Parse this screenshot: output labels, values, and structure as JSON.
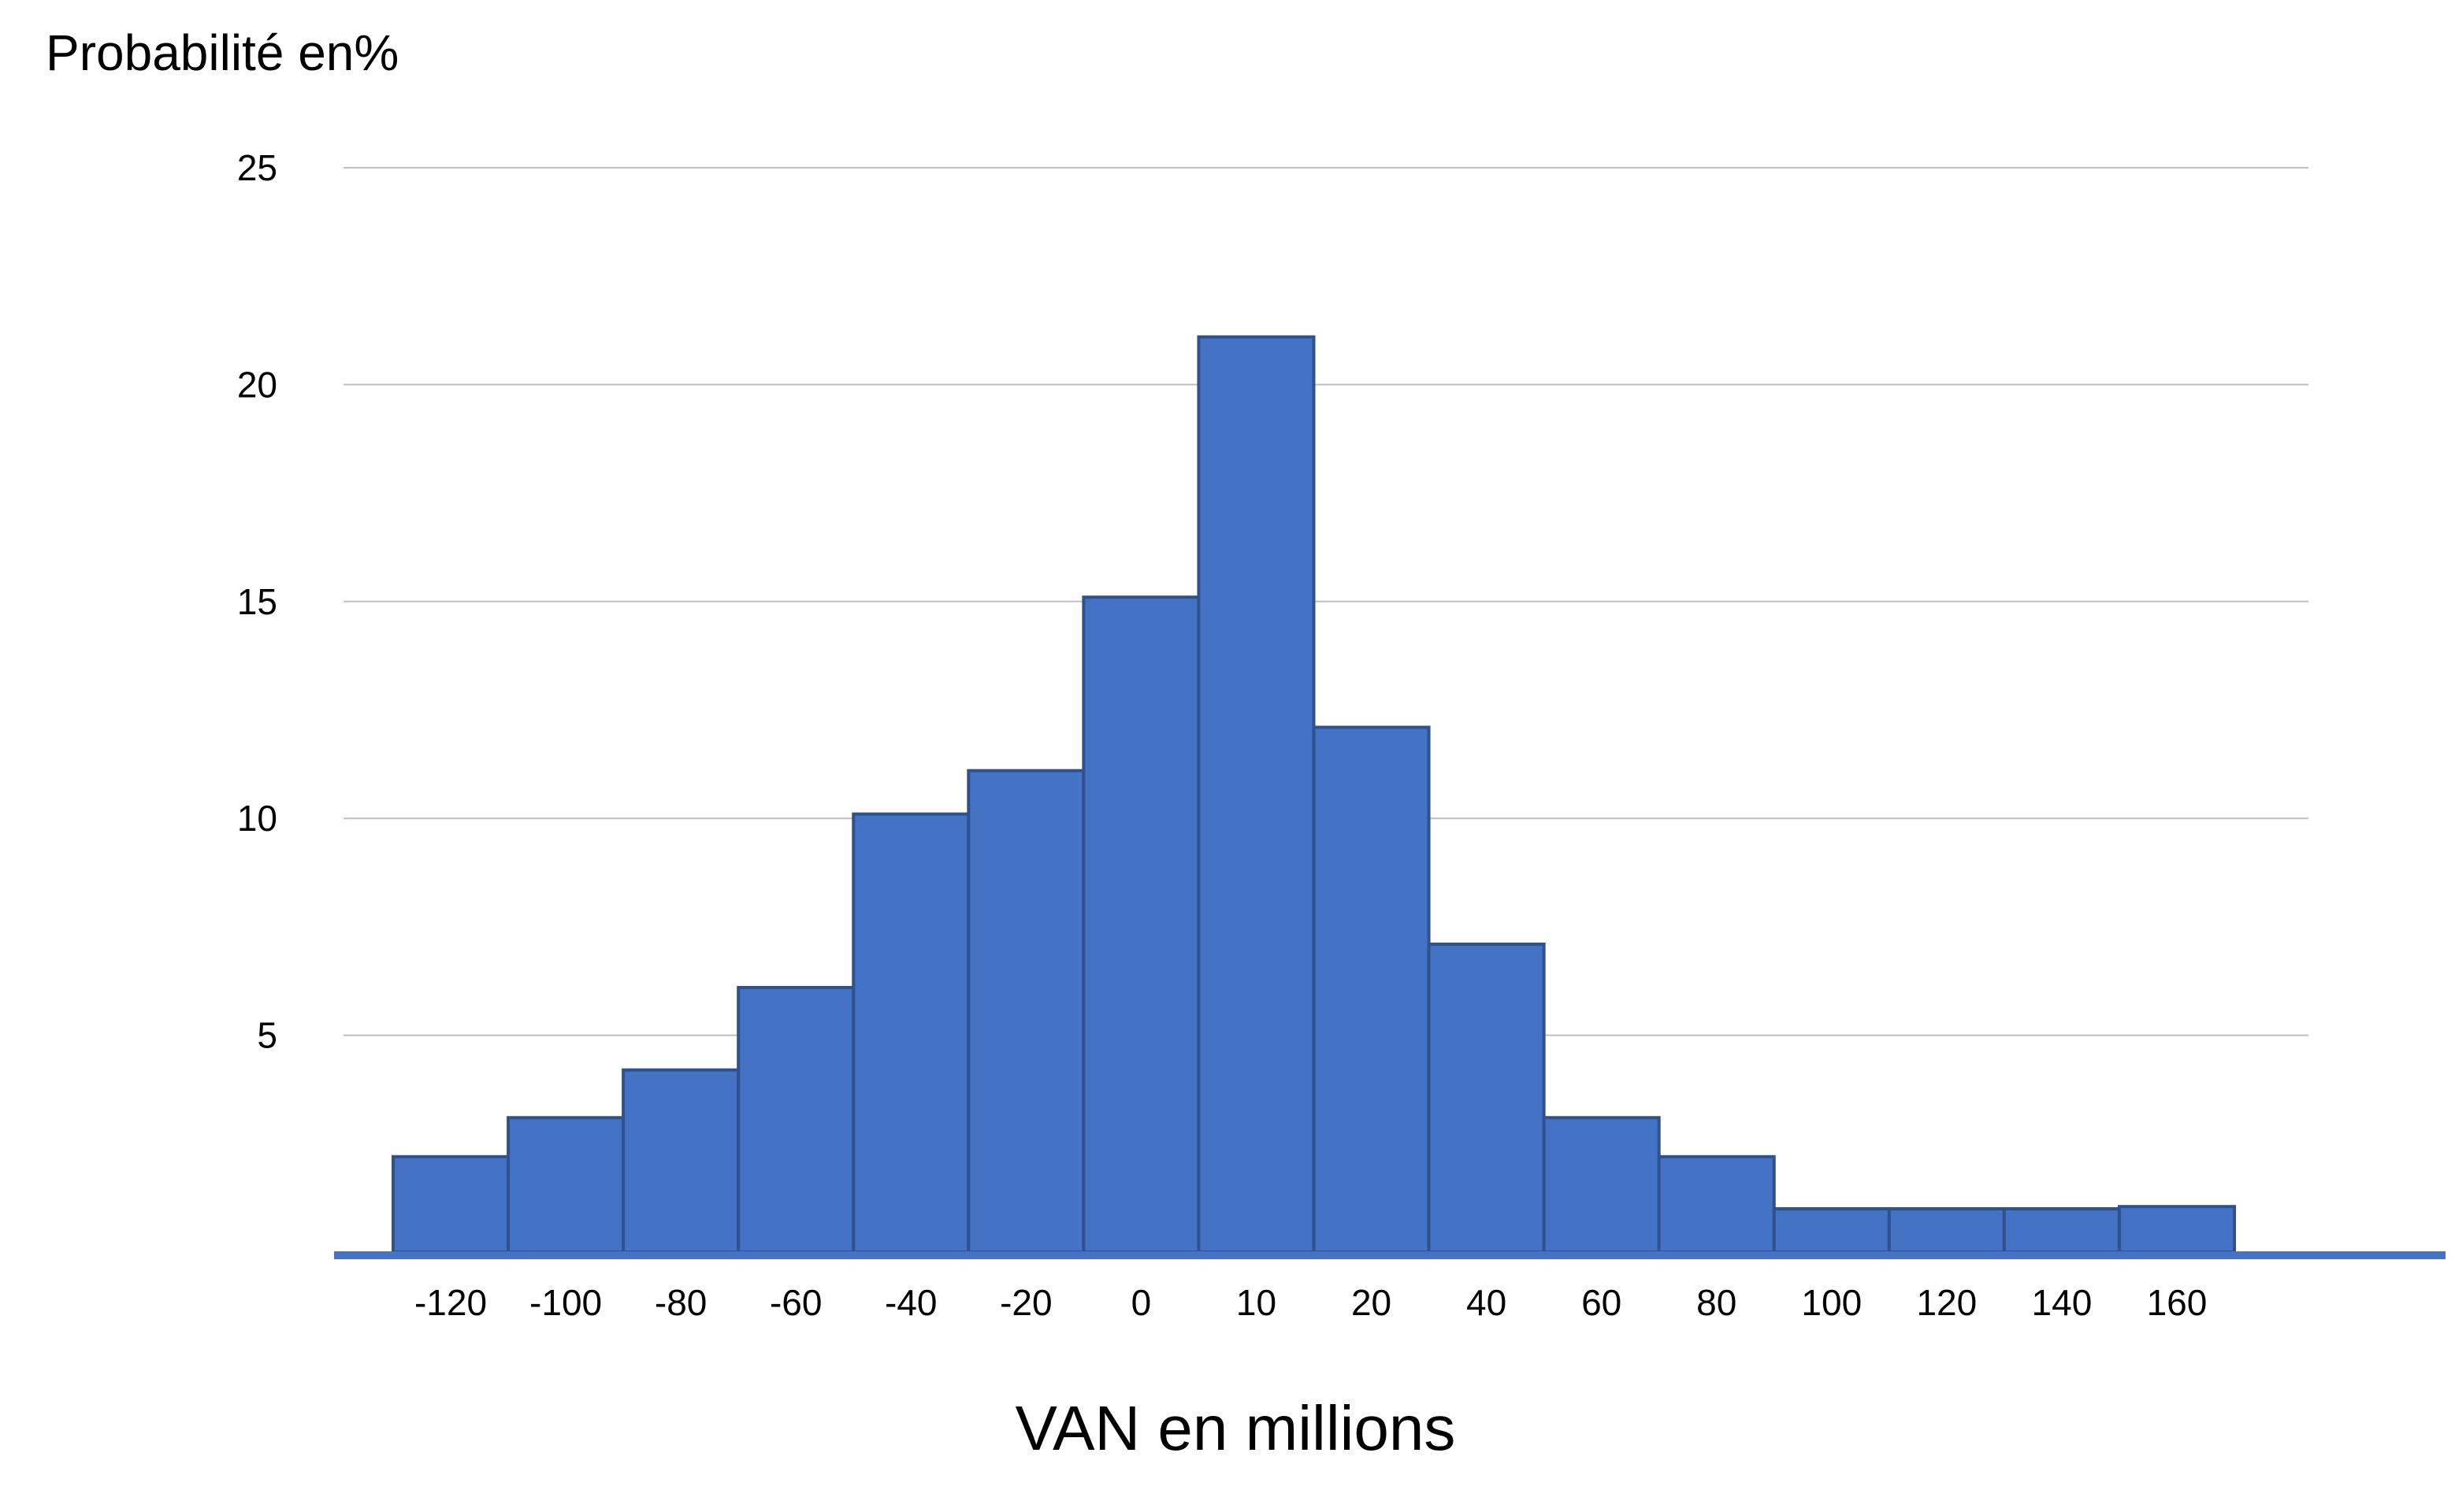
{
  "chart_data": {
    "type": "bar",
    "title": "",
    "ylabel": "Probabilité en%",
    "xlabel": "VAN en millions",
    "categories": [
      "-120",
      "-100",
      "-80",
      "-60",
      "-40",
      "-20",
      "0",
      "10",
      "20",
      "40",
      "60",
      "80",
      "100",
      "120",
      "140",
      "160"
    ],
    "values": [
      2.2,
      3.1,
      4.2,
      6.1,
      10.1,
      11.1,
      15.1,
      21.1,
      12.1,
      7.1,
      3.1,
      2.2,
      1.0,
      1.0,
      1.0,
      1.05
    ],
    "yticks": [
      "5",
      "10",
      "15",
      "20",
      "25"
    ],
    "ylim": [
      0,
      25
    ],
    "grid": true,
    "legend": "none",
    "bar_gap": 0,
    "colors": {
      "fill": "#4472C4",
      "stroke": "#2F528F",
      "axis": "#4472C4",
      "grid": "#BFBFBF"
    }
  }
}
